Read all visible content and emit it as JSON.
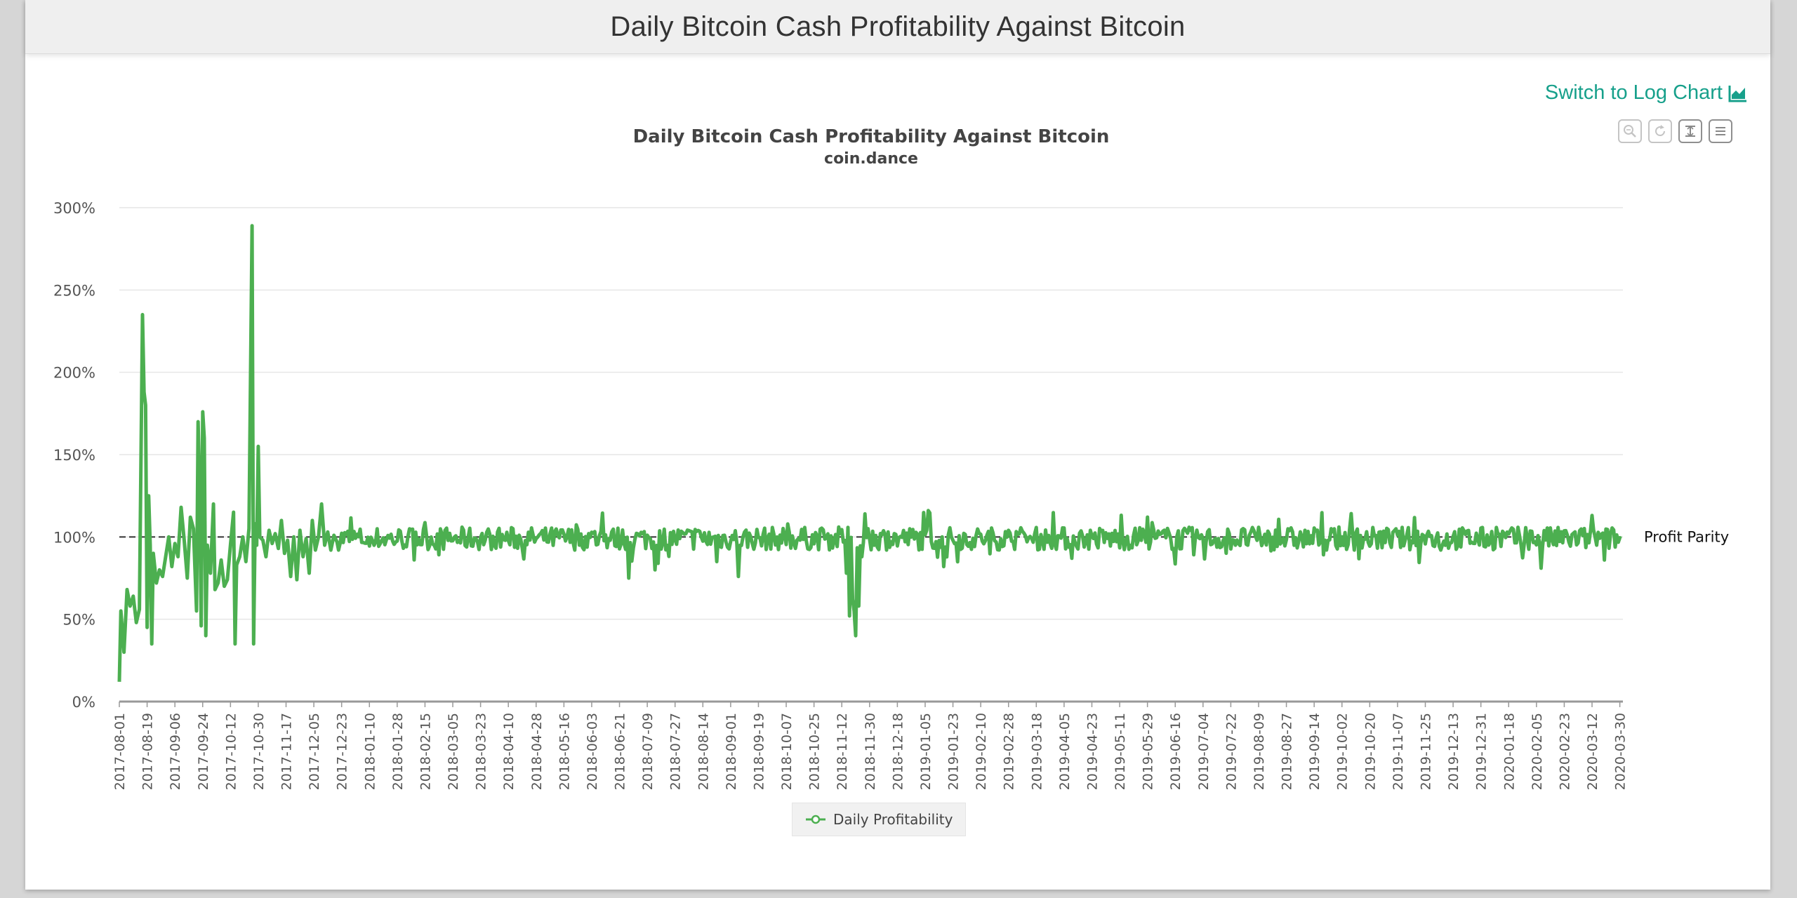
{
  "header": {
    "title": "Daily Bitcoin Cash Profitability Against Bitcoin"
  },
  "log_link": {
    "label": "Switch to Log Chart"
  },
  "toolbar": {
    "icons": [
      "zoom-in-icon",
      "reset-zoom-icon",
      "select-zoom-icon",
      "menu-icon"
    ]
  },
  "colors": {
    "series": "#4caf50",
    "link": "#17a08b",
    "parity_line": "#333333",
    "grid": "#e6e6e6"
  },
  "chart_data": {
    "type": "line",
    "title": "Daily Bitcoin Cash Profitability Against Bitcoin",
    "subtitle": "coin.dance",
    "xlabel": "",
    "ylabel": "",
    "x_range": [
      "2017-08-01",
      "2020-04-01"
    ],
    "ylim": [
      0,
      300
    ],
    "y_ticks": [
      "0%",
      "50%",
      "100%",
      "150%",
      "200%",
      "250%",
      "300%"
    ],
    "x_ticks": [
      "2017-08-01",
      "2017-08-19",
      "2017-09-06",
      "2017-09-24",
      "2017-10-12",
      "2017-10-30",
      "2017-11-17",
      "2017-12-05",
      "2017-12-23",
      "2018-01-10",
      "2018-01-28",
      "2018-02-15",
      "2018-03-05",
      "2018-03-23",
      "2018-04-10",
      "2018-04-28",
      "2018-05-16",
      "2018-06-03",
      "2018-06-21",
      "2018-07-09",
      "2018-07-27",
      "2018-08-14",
      "2018-09-01",
      "2018-09-19",
      "2018-10-07",
      "2018-10-25",
      "2018-11-12",
      "2018-11-30",
      "2018-12-18",
      "2019-01-05",
      "2019-01-23",
      "2019-02-10",
      "2019-02-28",
      "2019-03-18",
      "2019-04-05",
      "2019-04-23",
      "2019-05-11",
      "2019-05-29",
      "2019-06-16",
      "2019-07-04",
      "2019-07-22",
      "2019-08-09",
      "2019-08-27",
      "2019-09-14",
      "2019-10-02",
      "2019-10-20",
      "2019-11-07",
      "2019-11-25",
      "2019-12-13",
      "2019-12-31",
      "2020-01-18",
      "2020-02-05",
      "2020-02-23",
      "2020-03-12",
      "2020-03-30"
    ],
    "plot_line": {
      "value": 100,
      "label": "Profit Parity"
    },
    "grid": true,
    "legend_position": "bottom-center",
    "series": [
      {
        "name": "Daily Profitability",
        "color": "#4caf50",
        "points": [
          [
            "2017-08-01",
            12
          ],
          [
            "2017-08-02",
            55
          ],
          [
            "2017-08-04",
            30
          ],
          [
            "2017-08-06",
            68
          ],
          [
            "2017-08-08",
            58
          ],
          [
            "2017-08-10",
            64
          ],
          [
            "2017-08-12",
            48
          ],
          [
            "2017-08-14",
            56
          ],
          [
            "2017-08-16",
            235
          ],
          [
            "2017-08-17",
            188
          ],
          [
            "2017-08-18",
            180
          ],
          [
            "2017-08-19",
            45
          ],
          [
            "2017-08-20",
            125
          ],
          [
            "2017-08-21",
            95
          ],
          [
            "2017-08-22",
            35
          ],
          [
            "2017-08-23",
            90
          ],
          [
            "2017-08-25",
            72
          ],
          [
            "2017-08-27",
            80
          ],
          [
            "2017-08-29",
            76
          ],
          [
            "2017-08-31",
            88
          ],
          [
            "2017-09-02",
            100
          ],
          [
            "2017-09-04",
            82
          ],
          [
            "2017-09-06",
            96
          ],
          [
            "2017-09-08",
            88
          ],
          [
            "2017-09-10",
            118
          ],
          [
            "2017-09-12",
            98
          ],
          [
            "2017-09-14",
            75
          ],
          [
            "2017-09-16",
            112
          ],
          [
            "2017-09-18",
            105
          ],
          [
            "2017-09-20",
            55
          ],
          [
            "2017-09-21",
            170
          ],
          [
            "2017-09-22",
            130
          ],
          [
            "2017-09-23",
            46
          ],
          [
            "2017-09-24",
            176
          ],
          [
            "2017-09-25",
            160
          ],
          [
            "2017-09-26",
            40
          ],
          [
            "2017-09-27",
            95
          ],
          [
            "2017-09-29",
            78
          ],
          [
            "2017-10-01",
            120
          ],
          [
            "2017-10-02",
            68
          ],
          [
            "2017-10-04",
            72
          ],
          [
            "2017-10-06",
            86
          ],
          [
            "2017-10-08",
            70
          ],
          [
            "2017-10-10",
            74
          ],
          [
            "2017-10-12",
            95
          ],
          [
            "2017-10-14",
            115
          ],
          [
            "2017-10-15",
            35
          ],
          [
            "2017-10-16",
            83
          ],
          [
            "2017-10-18",
            88
          ],
          [
            "2017-10-20",
            100
          ],
          [
            "2017-10-22",
            85
          ],
          [
            "2017-10-24",
            105
          ],
          [
            "2017-10-26",
            289
          ],
          [
            "2017-10-27",
            35
          ],
          [
            "2017-10-28",
            108
          ],
          [
            "2017-10-29",
            95
          ],
          [
            "2017-10-30",
            155
          ],
          [
            "2017-10-31",
            100
          ],
          [
            "2017-11-02",
            98
          ],
          [
            "2017-11-04",
            88
          ],
          [
            "2017-11-06",
            104
          ],
          [
            "2017-11-08",
            96
          ],
          [
            "2017-11-10",
            102
          ],
          [
            "2017-11-12",
            93
          ],
          [
            "2017-11-14",
            110
          ],
          [
            "2017-11-16",
            90
          ],
          [
            "2017-11-18",
            98
          ],
          [
            "2017-11-20",
            76
          ],
          [
            "2017-11-22",
            100
          ],
          [
            "2017-11-24",
            74
          ],
          [
            "2017-11-26",
            104
          ],
          [
            "2017-11-28",
            88
          ],
          [
            "2017-11-30",
            99
          ],
          [
            "2017-12-02",
            78
          ],
          [
            "2017-12-04",
            110
          ],
          [
            "2017-12-06",
            92
          ],
          [
            "2017-12-08",
            100
          ],
          [
            "2017-12-10",
            120
          ],
          [
            "2017-12-12",
            95
          ],
          [
            "2017-12-14",
            103
          ],
          [
            "2017-12-16",
            92
          ],
          [
            "2017-12-18",
            101
          ],
          [
            "2017-12-20",
            97
          ]
        ],
        "band": {
          "from": "2017-12-20",
          "to": "2020-03-31",
          "center": 99,
          "amplitude": 7
        },
        "events": [
          [
            "2018-06-27",
            75
          ],
          [
            "2018-07-14",
            80
          ],
          [
            "2018-08-23",
            85
          ],
          [
            "2018-09-06",
            76
          ],
          [
            "2018-11-15",
            78
          ],
          [
            "2018-11-17",
            52
          ],
          [
            "2018-11-19",
            62
          ],
          [
            "2018-11-20",
            55
          ],
          [
            "2018-11-21",
            40
          ],
          [
            "2018-11-23",
            58
          ],
          [
            "2018-11-25",
            88
          ],
          [
            "2018-11-27",
            114
          ],
          [
            "2018-11-29",
            105
          ],
          [
            "2019-01-07",
            116
          ],
          [
            "2019-01-17",
            82
          ],
          [
            "2019-04-10",
            87
          ],
          [
            "2019-12-05",
            92
          ],
          [
            "2020-02-08",
            81
          ],
          [
            "2020-03-12",
            113
          ],
          [
            "2020-03-20",
            86
          ]
        ]
      }
    ]
  }
}
